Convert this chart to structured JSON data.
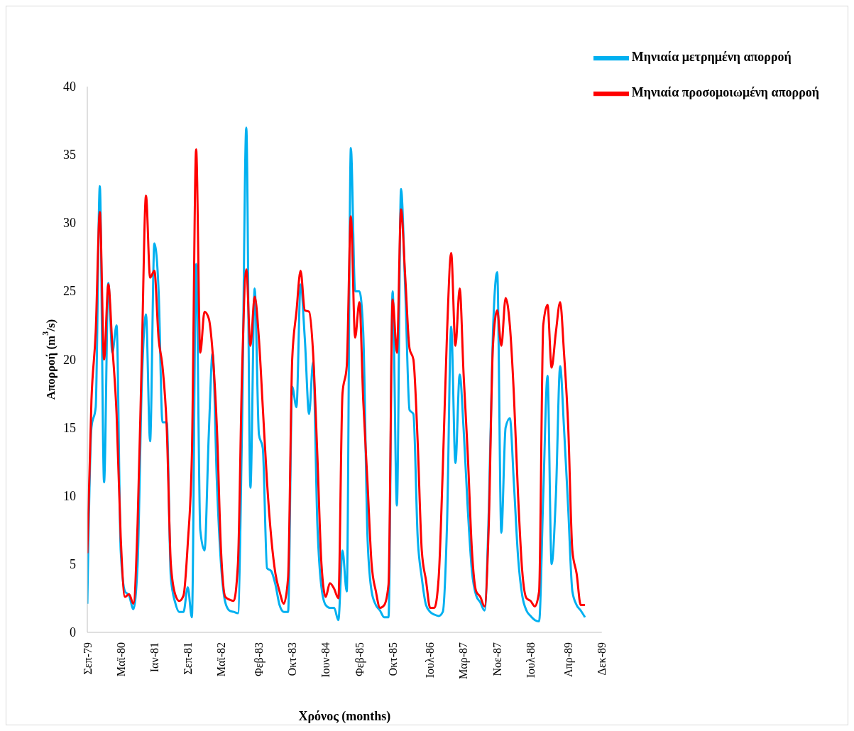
{
  "chart_data": {
    "type": "line",
    "xlabel": "Χρόνος (months)",
    "ylabel": "Απορροή (m$^{3}$/s)",
    "x": [
      "1979-09",
      "1979-10",
      "1979-11",
      "1979-12",
      "1980-01",
      "1980-02",
      "1980-03",
      "1980-04",
      "1980-05",
      "1980-06",
      "1980-07",
      "1980-08",
      "1980-09",
      "1980-10",
      "1980-11",
      "1980-12",
      "1981-01",
      "1981-02",
      "1981-03",
      "1981-04",
      "1981-05",
      "1981-06",
      "1981-07",
      "1981-08",
      "1981-09",
      "1981-10",
      "1981-11",
      "1981-12",
      "1982-01",
      "1982-02",
      "1982-03",
      "1982-04",
      "1982-05",
      "1982-06",
      "1982-07",
      "1982-08",
      "1982-09",
      "1982-10",
      "1982-11",
      "1982-12",
      "1983-01",
      "1983-02",
      "1983-03",
      "1983-04",
      "1983-05",
      "1983-06",
      "1983-07",
      "1983-08",
      "1983-09",
      "1983-10",
      "1983-11",
      "1983-12",
      "1984-01",
      "1984-02",
      "1984-03",
      "1984-04",
      "1984-05",
      "1984-06",
      "1984-07",
      "1984-08",
      "1984-09",
      "1984-10",
      "1984-11",
      "1984-12",
      "1985-01",
      "1985-02",
      "1985-03",
      "1985-04",
      "1985-05",
      "1985-06",
      "1985-07",
      "1985-08",
      "1985-09",
      "1985-10",
      "1985-11",
      "1985-12",
      "1986-01",
      "1986-02",
      "1986-03",
      "1986-04",
      "1986-05",
      "1986-06",
      "1986-07",
      "1986-08",
      "1986-09",
      "1986-10",
      "1986-11",
      "1986-12",
      "1987-01",
      "1987-02",
      "1987-03",
      "1987-04",
      "1987-05",
      "1987-06",
      "1987-07",
      "1987-08",
      "1987-09",
      "1987-10",
      "1987-11",
      "1987-12",
      "1988-01",
      "1988-02",
      "1988-03",
      "1988-04",
      "1988-05",
      "1988-06",
      "1988-07",
      "1988-08",
      "1988-09",
      "1988-10",
      "1988-11",
      "1988-12",
      "1989-01",
      "1989-02",
      "1989-03",
      "1989-04",
      "1989-05",
      "1989-06",
      "1989-07",
      "1989-08"
    ],
    "series": [
      {
        "name": "Μηνιαία μετρημένη απορροή",
        "color": "#00b0f0",
        "values": [
          2.1,
          15,
          16.5,
          32.7,
          11,
          25.6,
          20.5,
          22.5,
          6,
          3,
          2.7,
          1.7,
          5,
          18,
          23.3,
          14,
          28.5,
          25,
          15.4,
          15.4,
          4,
          2.2,
          1.5,
          1.5,
          3.3,
          1.1,
          27,
          7.5,
          6,
          14.5,
          20.5,
          11,
          5,
          2.2,
          1.6,
          1.5,
          1.4,
          15,
          37,
          10.6,
          25.2,
          14.5,
          13.5,
          4.7,
          4.5,
          3.5,
          2,
          1.5,
          1.5,
          18,
          16.5,
          25.5,
          21.5,
          16,
          19.8,
          8,
          3.3,
          2,
          1.8,
          1.8,
          0.9,
          6,
          3,
          35.5,
          25,
          25,
          22,
          7,
          3,
          2,
          1.6,
          1.1,
          1.1,
          25,
          9.3,
          32.5,
          25,
          16.3,
          16,
          7,
          4,
          2,
          1.5,
          1.3,
          1.2,
          1.5,
          8,
          22.4,
          12.4,
          18.9,
          15,
          9,
          4.5,
          2.7,
          2.2,
          1.6,
          9,
          22,
          26.4,
          7.3,
          15,
          15.7,
          11,
          5.5,
          2.7,
          1.6,
          1.2,
          0.9,
          0.8,
          10,
          18.8,
          5,
          10,
          19.5,
          15,
          9,
          3,
          2,
          1.6,
          1.1
        ]
      },
      {
        "name": "Μηνιαία προσομοιωμένη απορροή",
        "color": "#ff0000",
        "values": [
          5.8,
          17,
          22,
          30.8,
          20,
          25.5,
          21,
          16,
          7,
          2.6,
          2.8,
          2.1,
          8,
          20,
          32,
          26,
          26.5,
          21.5,
          19.5,
          15,
          5,
          2.8,
          2.3,
          2.7,
          6.5,
          13,
          35.4,
          20.5,
          23.5,
          23,
          20.5,
          15,
          6,
          2.6,
          2.4,
          2.3,
          5,
          19,
          26.6,
          21,
          24.6,
          21.5,
          16.5,
          11,
          7,
          4.3,
          3,
          2.1,
          4,
          20,
          23.5,
          26.5,
          23.6,
          23.5,
          20.5,
          13,
          5,
          2.6,
          3.6,
          3.2,
          2.5,
          17.5,
          19.5,
          30.5,
          21.6,
          24.2,
          17,
          11,
          5,
          3,
          1.8,
          2,
          3.5,
          24.4,
          20.5,
          31,
          26,
          20.8,
          20,
          14,
          6,
          3.8,
          1.8,
          1.8,
          4,
          12,
          22,
          27.8,
          21,
          25.2,
          19,
          13,
          6,
          3,
          2.6,
          1.9,
          8,
          21,
          23.6,
          21,
          24.5,
          22.5,
          17.5,
          10,
          4.5,
          2.5,
          2.3,
          1.9,
          3,
          22.5,
          24,
          19.4,
          22,
          24.2,
          20.5,
          15,
          6,
          4.3,
          2,
          2
        ]
      }
    ],
    "xlim": [
      "1979-09",
      "1989-12"
    ],
    "xticks": [
      {
        "value": "1979-09",
        "label": "Σεπ-79"
      },
      {
        "value": "1980-05",
        "label": "Μαϊ-80"
      },
      {
        "value": "1981-01",
        "label": "Ιαν-81"
      },
      {
        "value": "1981-09",
        "label": "Σεπ-81"
      },
      {
        "value": "1982-05",
        "label": "Μαϊ-82"
      },
      {
        "value": "1983-02",
        "label": "Φεβ-83"
      },
      {
        "value": "1983-10",
        "label": "Οκτ-83"
      },
      {
        "value": "1984-06",
        "label": "Ιουν-84"
      },
      {
        "value": "1985-02",
        "label": "Φεβ-85"
      },
      {
        "value": "1985-10",
        "label": "Οκτ-85"
      },
      {
        "value": "1986-07",
        "label": "Ιουλ-86"
      },
      {
        "value": "1987-03",
        "label": "Μαρ-87"
      },
      {
        "value": "1987-11",
        "label": "Νοε-87"
      },
      {
        "value": "1988-07",
        "label": "Ιουλ-88"
      },
      {
        "value": "1989-04",
        "label": "Απρ-89"
      },
      {
        "value": "1989-12",
        "label": "Δεκ-89"
      }
    ],
    "ylim": [
      0,
      40
    ],
    "yticks": [
      0,
      5,
      10,
      15,
      20,
      25,
      30,
      35,
      40
    ],
    "grid": false,
    "legend": "top right",
    "line_style": "solid"
  }
}
